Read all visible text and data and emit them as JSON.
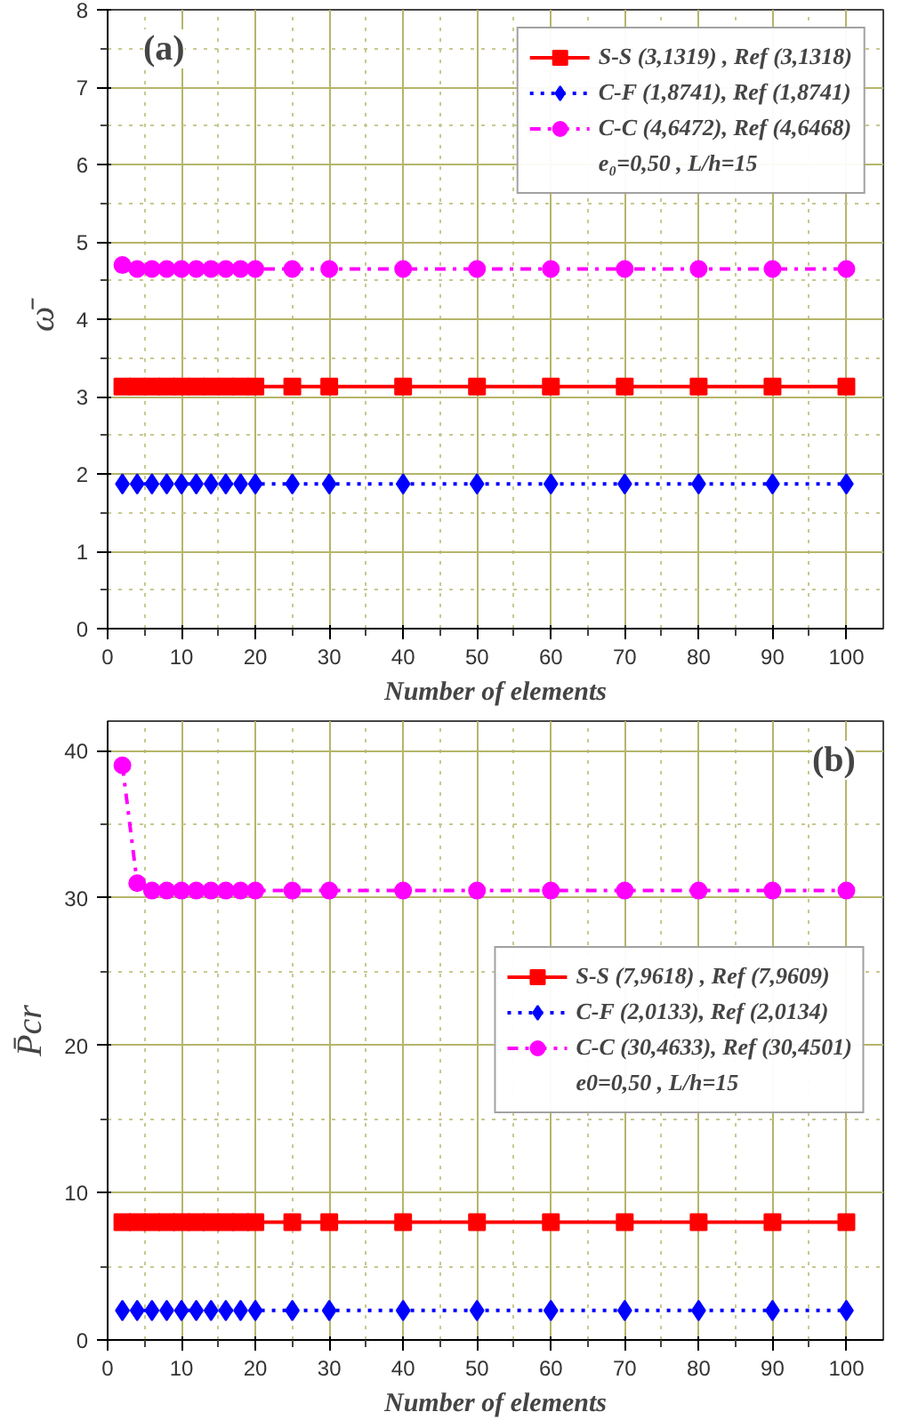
{
  "chart_data": [
    {
      "type": "line",
      "xlabel": "Number of elements",
      "ylabel": "ω̄",
      "x": [
        2,
        4,
        6,
        8,
        10,
        12,
        14,
        16,
        18,
        20,
        25,
        30,
        40,
        50,
        60,
        70,
        80,
        90,
        100
      ],
      "xlim": [
        0,
        105
      ],
      "xticks": [
        0,
        {
          "value": 5,
          "label": null
        },
        10,
        {
          "value": 15,
          "label": null
        },
        20,
        {
          "value": 25,
          "label": null
        },
        30,
        {
          "value": 35,
          "label": null
        },
        40,
        {
          "value": 45,
          "label": null
        },
        50,
        {
          "value": 55,
          "label": null
        },
        60,
        {
          "value": 65,
          "label": null
        },
        70,
        {
          "value": 75,
          "label": null
        },
        80,
        {
          "value": 85,
          "label": null
        },
        90,
        {
          "value": 95,
          "label": null
        },
        100
      ],
      "ylim": [
        0,
        8
      ],
      "yticks": [
        0,
        {
          "value": 0.5,
          "label": null
        },
        1,
        {
          "value": 1.5,
          "label": null
        },
        2,
        {
          "value": 2.5,
          "label": null
        },
        3,
        {
          "value": 3.5,
          "label": null
        },
        4,
        {
          "value": 4.5,
          "label": null
        },
        5,
        {
          "value": 5.5,
          "label": null
        },
        6,
        {
          "value": 6.5,
          "label": null
        },
        7,
        {
          "value": 7.5,
          "label": null
        },
        8
      ],
      "grid": true,
      "legend": "top right",
      "annotations": [
        "(a)",
        "e₀=0,50 , L/h=15"
      ],
      "series": [
        {
          "name": "S-S (3,1319) , Ref (3,1318)",
          "color": "#ff0000",
          "marker": "square",
          "line_style": "solid",
          "values": [
            3.13,
            3.13,
            3.13,
            3.13,
            3.13,
            3.13,
            3.13,
            3.13,
            3.13,
            3.13,
            3.13,
            3.13,
            3.13,
            3.13,
            3.13,
            3.13,
            3.13,
            3.13,
            3.13
          ]
        },
        {
          "name": "C-F (1,8741), Ref (1,8741)",
          "color": "#0000ff",
          "marker": "diamond",
          "line_style": "dotted",
          "values": [
            1.87,
            1.87,
            1.87,
            1.87,
            1.87,
            1.87,
            1.87,
            1.87,
            1.87,
            1.87,
            1.87,
            1.87,
            1.87,
            1.87,
            1.87,
            1.87,
            1.87,
            1.87,
            1.87
          ]
        },
        {
          "name": "C-C (4,6472), Ref (4,6468)",
          "color": "#ff00ff",
          "marker": "circle",
          "line_style": "dashdot",
          "values": [
            4.7,
            4.65,
            4.65,
            4.65,
            4.65,
            4.65,
            4.65,
            4.65,
            4.65,
            4.65,
            4.65,
            4.65,
            4.65,
            4.65,
            4.65,
            4.65,
            4.65,
            4.65,
            4.65
          ]
        }
      ]
    },
    {
      "type": "line",
      "xlabel": "Number of elements",
      "ylabel": "P̄cr",
      "x": [
        2,
        4,
        6,
        8,
        10,
        12,
        14,
        16,
        18,
        20,
        25,
        30,
        40,
        50,
        60,
        70,
        80,
        90,
        100
      ],
      "xlim": [
        0,
        105
      ],
      "xticks": [
        0,
        {
          "value": 5,
          "label": null
        },
        10,
        {
          "value": 15,
          "label": null
        },
        20,
        {
          "value": 25,
          "label": null
        },
        30,
        {
          "value": 35,
          "label": null
        },
        40,
        {
          "value": 45,
          "label": null
        },
        50,
        {
          "value": 55,
          "label": null
        },
        60,
        {
          "value": 65,
          "label": null
        },
        70,
        {
          "value": 75,
          "label": null
        },
        80,
        {
          "value": 85,
          "label": null
        },
        90,
        {
          "value": 95,
          "label": null
        },
        100
      ],
      "ylim": [
        0,
        42
      ],
      "yticks": [
        0,
        {
          "value": 5,
          "label": null
        },
        10,
        {
          "value": 15,
          "label": null
        },
        20,
        {
          "value": 25,
          "label": null
        },
        30,
        {
          "value": 35,
          "label": null
        },
        40
      ],
      "grid": true,
      "legend": "right",
      "annotations": [
        "(b)",
        "e0=0,50 , L/h=15"
      ],
      "series": [
        {
          "name": "S-S (7,9618) , Ref (7,9609)",
          "color": "#ff0000",
          "marker": "square",
          "line_style": "solid",
          "values": [
            8,
            8,
            8,
            8,
            8,
            8,
            8,
            8,
            8,
            8,
            8,
            8,
            8,
            8,
            8,
            8,
            8,
            8,
            8
          ]
        },
        {
          "name": "C-F (2,0133), Ref (2,0134)",
          "color": "#0000ff",
          "marker": "diamond",
          "line_style": "dotted",
          "values": [
            2.0,
            2.0,
            2.0,
            2.0,
            2.0,
            2.0,
            2.0,
            2.0,
            2.0,
            2.0,
            2.0,
            2.0,
            2.0,
            2.0,
            2.0,
            2.0,
            2.0,
            2.0,
            2.0
          ]
        },
        {
          "name": "C-C (30,4633), Ref (30,4501)",
          "color": "#ff00ff",
          "marker": "circle",
          "line_style": "dashdot",
          "values": [
            39,
            31,
            30.5,
            30.5,
            30.5,
            30.5,
            30.5,
            30.5,
            30.5,
            30.5,
            30.5,
            30.5,
            30.5,
            30.5,
            30.5,
            30.5,
            30.5,
            30.5,
            30.5
          ]
        }
      ]
    }
  ]
}
